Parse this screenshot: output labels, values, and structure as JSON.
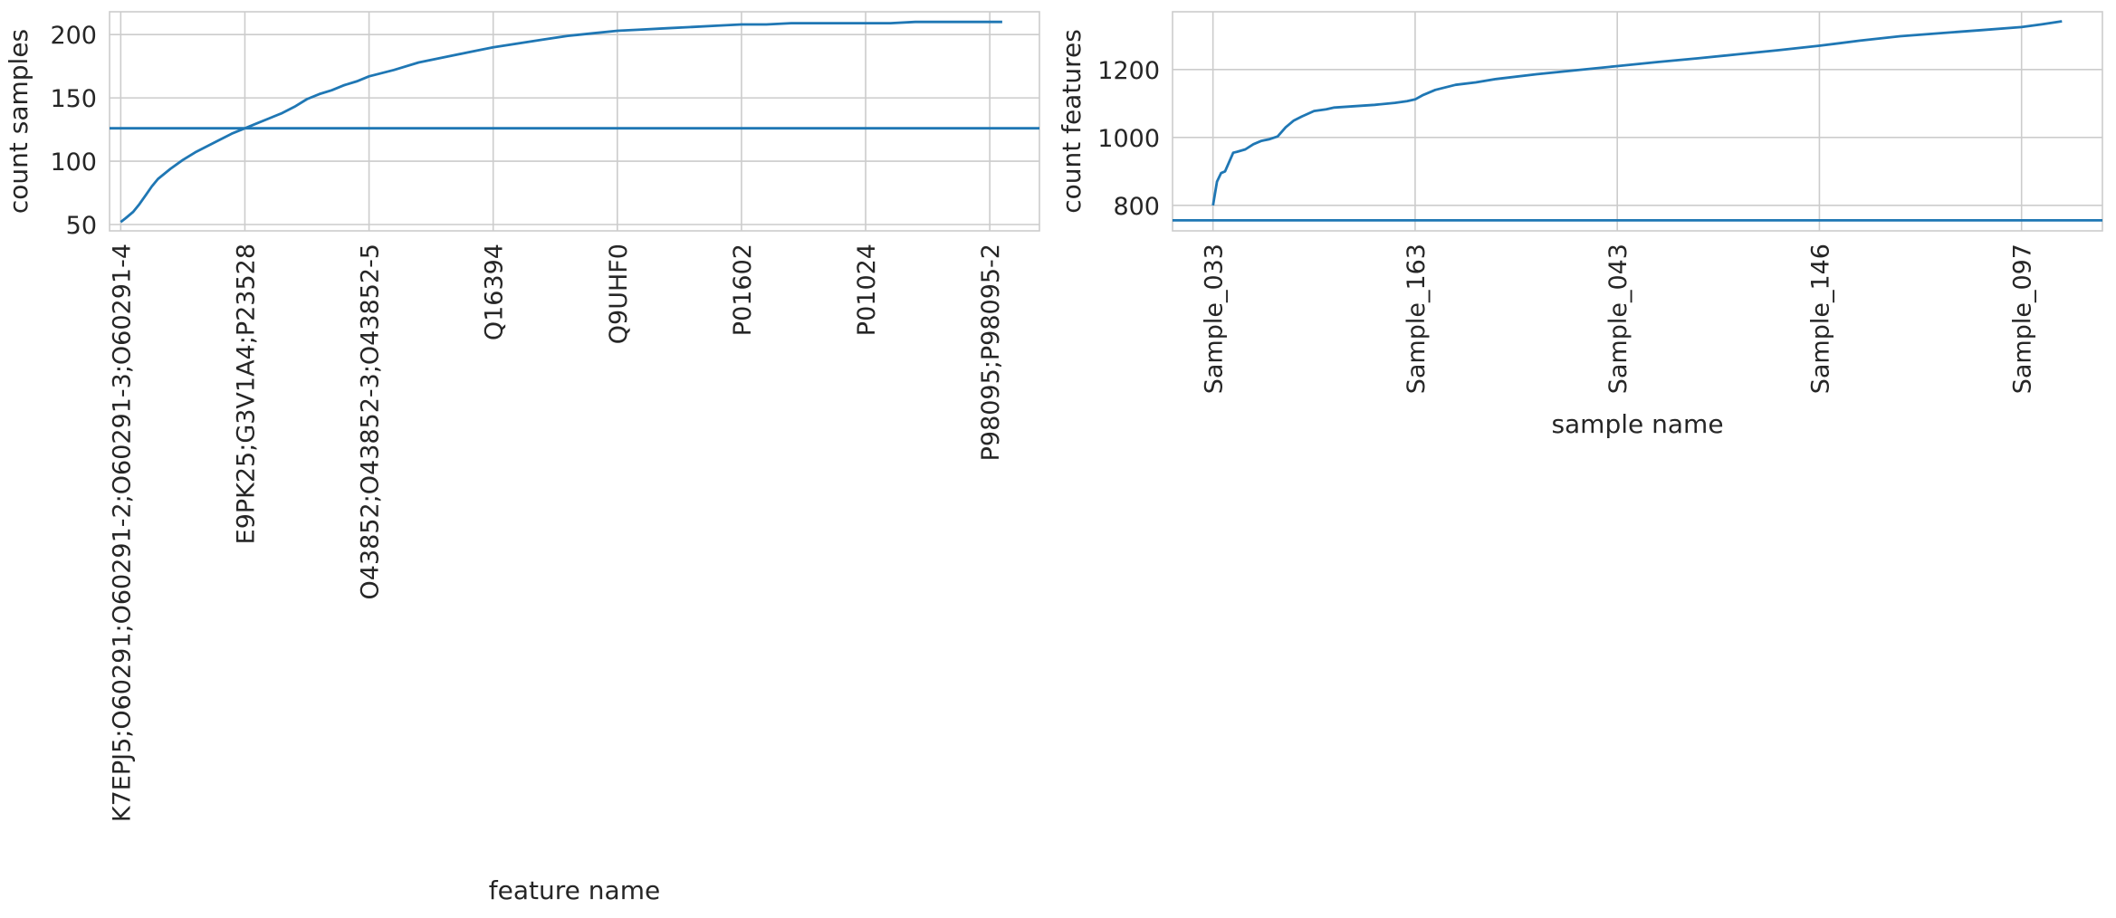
{
  "chart_data": [
    {
      "type": "line",
      "title": "",
      "xlabel": "feature name",
      "ylabel": "count samples",
      "grid": true,
      "legend": "none",
      "line_color": "#1f77b4",
      "xlim": [
        -90,
        7400
      ],
      "ylim": [
        45,
        218
      ],
      "x_ticks": [
        {
          "value": 0,
          "label": "K7EPJ5;O60291;O60291-2;O60291-3;O60291-4"
        },
        {
          "value": 1000,
          "label": "E9PK25;G3V1A4;P23528"
        },
        {
          "value": 2000,
          "label": "O43852;O43852-3;O43852-5"
        },
        {
          "value": 3000,
          "label": "Q16394"
        },
        {
          "value": 4000,
          "label": "Q9UHF0"
        },
        {
          "value": 5000,
          "label": "P01602"
        },
        {
          "value": 6000,
          "label": "P01024"
        },
        {
          "value": 7000,
          "label": "P98095;P98095-2"
        }
      ],
      "y_ticks": [
        50,
        100,
        150,
        200
      ],
      "threshold": 126,
      "series": [
        {
          "x": [
            0,
            40,
            100,
            150,
            200,
            250,
            300,
            350,
            400,
            500,
            600,
            700,
            800,
            900,
            1000,
            1100,
            1200,
            1300,
            1400,
            1500,
            1600,
            1700,
            1800,
            1900,
            2000,
            2200,
            2400,
            2600,
            2800,
            3000,
            3200,
            3400,
            3600,
            3800,
            4000,
            4200,
            4400,
            4600,
            4800,
            5000,
            5200,
            5400,
            5600,
            5800,
            6000,
            6200,
            6400,
            6600,
            6800,
            7000,
            7100
          ],
          "values": [
            52,
            55,
            60,
            66,
            73,
            80,
            86,
            90,
            94,
            101,
            107,
            112,
            117,
            122,
            126,
            130,
            134,
            138,
            143,
            149,
            153,
            156,
            160,
            163,
            167,
            172,
            178,
            182,
            186,
            190,
            193,
            196,
            199,
            201,
            203,
            204,
            205,
            206,
            207,
            208,
            208,
            209,
            209,
            209,
            209,
            209,
            210,
            210,
            210,
            210,
            210
          ]
        }
      ]
    },
    {
      "type": "line",
      "title": "",
      "xlabel": "sample name",
      "ylabel": "count features",
      "grid": true,
      "legend": "none",
      "line_color": "#1f77b4",
      "xlim": [
        -10,
        220
      ],
      "ylim": [
        725,
        1370
      ],
      "x_ticks": [
        {
          "value": 0,
          "label": "Sample_033"
        },
        {
          "value": 50,
          "label": "Sample_163"
        },
        {
          "value": 100,
          "label": "Sample_043"
        },
        {
          "value": 150,
          "label": "Sample_146"
        },
        {
          "value": 200,
          "label": "Sample_097"
        }
      ],
      "y_ticks": [
        800,
        1000,
        1200
      ],
      "threshold": 756,
      "series": [
        {
          "x": [
            0,
            1,
            2,
            3,
            5,
            6,
            8,
            10,
            12,
            14,
            16,
            18,
            20,
            22,
            25,
            28,
            30,
            35,
            40,
            45,
            48,
            50,
            52,
            55,
            60,
            65,
            70,
            80,
            90,
            100,
            110,
            120,
            130,
            140,
            150,
            160,
            170,
            180,
            190,
            200,
            205,
            210
          ],
          "values": [
            800,
            870,
            895,
            900,
            955,
            958,
            965,
            980,
            990,
            995,
            1003,
            1030,
            1050,
            1062,
            1078,
            1083,
            1088,
            1092,
            1096,
            1102,
            1107,
            1112,
            1125,
            1140,
            1155,
            1162,
            1172,
            1186,
            1198,
            1210,
            1222,
            1233,
            1245,
            1257,
            1270,
            1285,
            1298,
            1307,
            1316,
            1325,
            1333,
            1342
          ]
        }
      ]
    }
  ]
}
